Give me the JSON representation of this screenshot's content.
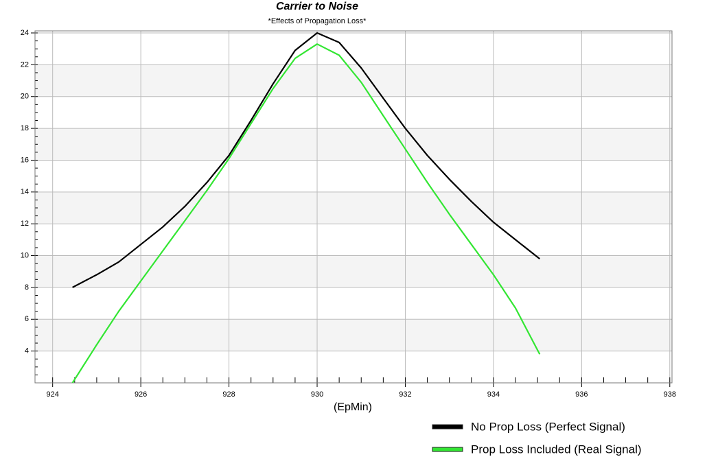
{
  "chart_data": {
    "type": "line",
    "title": "Carrier to Noise",
    "subtitle": "*Effects of Propagation Loss*",
    "x_label": "(EpMin)",
    "series": [
      {
        "name": "No Prop Loss (Perfect Signal)",
        "color": "#000000",
        "x": [
          924.45,
          925,
          925.5,
          926,
          926.5,
          927,
          927.5,
          928,
          928.5,
          929,
          929.5,
          930,
          930.5,
          931,
          931.5,
          932,
          932.5,
          933,
          933.5,
          934,
          934.5,
          935.05
        ],
        "values": [
          8.0,
          8.8,
          9.6,
          10.7,
          11.8,
          13.1,
          14.6,
          16.3,
          18.5,
          20.8,
          22.9,
          24.0,
          23.4,
          21.8,
          19.9,
          18.0,
          16.3,
          14.8,
          13.4,
          12.1,
          11.0,
          9.8
        ]
      },
      {
        "name": "Prop Loss Included (Real Signal)",
        "color": "#33e633",
        "x": [
          924.45,
          925,
          925.5,
          926,
          926.5,
          927,
          927.5,
          928,
          928.5,
          929,
          929.5,
          930,
          930.5,
          931,
          931.5,
          932,
          932.5,
          933,
          933.5,
          934,
          934.5,
          935.05
        ],
        "values": [
          2.0,
          4.4,
          6.5,
          8.4,
          10.3,
          12.2,
          14.1,
          16.1,
          18.3,
          20.5,
          22.4,
          23.3,
          22.6,
          20.9,
          18.8,
          16.7,
          14.6,
          12.6,
          10.7,
          8.8,
          6.7,
          3.8
        ]
      }
    ],
    "xlim": [
      923.6,
      938.05
    ],
    "xticks": [
      924,
      926,
      928,
      930,
      932,
      934,
      936,
      938
    ],
    "ylim": [
      2,
      24.13
    ],
    "yticks": [
      4,
      6,
      8,
      10,
      12,
      14,
      16,
      18,
      20,
      22,
      24
    ],
    "grid": true,
    "legend": "bottom-right"
  }
}
